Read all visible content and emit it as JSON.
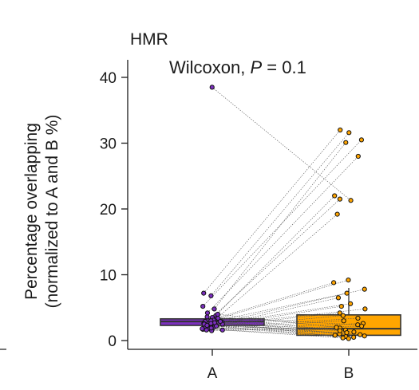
{
  "chart_data": {
    "type": "paired-box",
    "title": "HMR",
    "annotation": {
      "test": "Wilcoxon, ",
      "p_symbol": "P",
      "p_value": " = 0.1"
    },
    "ylabel_line1": "Percentage overlapping",
    "ylabel_line2": "(normalized to A and B %)",
    "ylim": [
      0,
      42
    ],
    "yticks": [
      0,
      10,
      20,
      30,
      40
    ],
    "categories": [
      "A",
      "B"
    ],
    "box_colors": {
      "A": "#7b2fbe",
      "B": "#ffa500"
    },
    "boxes": [
      {
        "name": "A",
        "q1": 2.3,
        "median": 2.9,
        "q3": 3.3,
        "whisker_low": 1.5,
        "whisker_high": 3.8
      },
      {
        "name": "B",
        "q1": 0.8,
        "median": 1.8,
        "q3": 3.9,
        "whisker_low": 0.1,
        "whisker_high": 8.0
      },
      {
        "name": "B-whisker-cap",
        "value": 8.0
      }
    ],
    "pairs": [
      [
        38.5,
        21.3
      ],
      [
        7.2,
        32.0
      ],
      [
        6.8,
        31.6
      ],
      [
        5.2,
        30.5
      ],
      [
        4.8,
        30.1
      ],
      [
        4.2,
        28.0
      ],
      [
        3.8,
        22.0
      ],
      [
        3.5,
        21.5
      ],
      [
        3.3,
        19.2
      ],
      [
        3.1,
        9.2
      ],
      [
        2.9,
        8.8
      ],
      [
        2.8,
        7.8
      ],
      [
        2.6,
        7.2
      ],
      [
        2.5,
        6.5
      ],
      [
        2.4,
        5.6
      ],
      [
        2.3,
        5.2
      ],
      [
        2.2,
        4.8
      ],
      [
        2.1,
        4.2
      ],
      [
        2.0,
        3.8
      ],
      [
        1.9,
        3.4
      ],
      [
        1.8,
        3.0
      ],
      [
        1.7,
        2.6
      ],
      [
        1.6,
        2.2
      ],
      [
        1.5,
        1.9
      ],
      [
        2.7,
        1.6
      ],
      [
        3.4,
        1.3
      ],
      [
        2.5,
        1.0
      ],
      [
        2.0,
        0.8
      ],
      [
        1.8,
        0.6
      ],
      [
        2.2,
        0.5
      ],
      [
        1.6,
        0.4
      ],
      [
        3.0,
        0.3
      ],
      [
        2.6,
        0.9
      ],
      [
        1.9,
        1.2
      ],
      [
        2.3,
        1.5
      ],
      [
        4.0,
        2.0
      ],
      [
        3.6,
        2.4
      ],
      [
        2.9,
        0.7
      ]
    ]
  }
}
